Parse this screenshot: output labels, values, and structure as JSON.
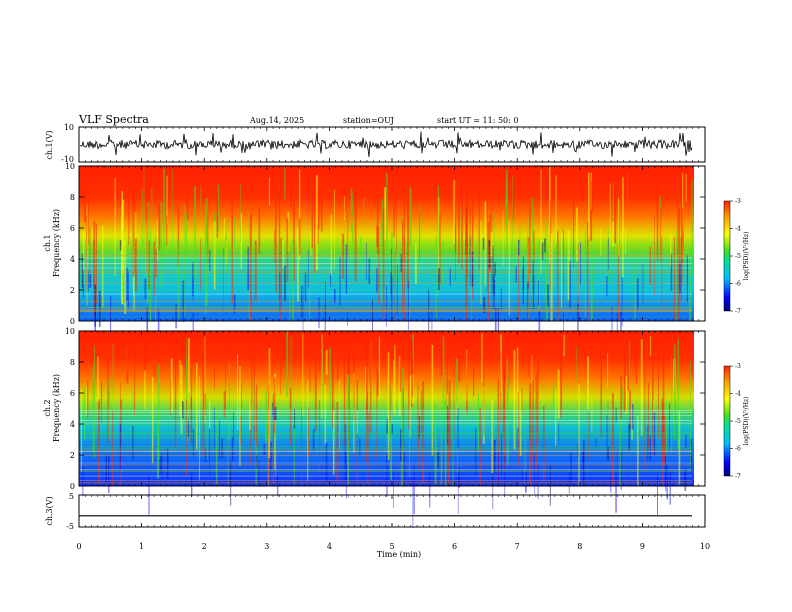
{
  "header": {
    "title": "VLF Spectra",
    "date": "Aug.14, 2025",
    "station": "station=OUJ",
    "start": "start  UT =  11: 50: 0"
  },
  "colors": {
    "colormap": [
      "#000080",
      "#0000ff",
      "#00c0ff",
      "#00e0a0",
      "#40e020",
      "#ffff00",
      "#ffa000",
      "#ff2000"
    ],
    "axis": "#000000",
    "background": "#ffffff"
  },
  "chart_data": [
    {
      "type": "line",
      "panel": "ch1-waveform",
      "ylabel": "ch.1(V)",
      "ylim": [
        -10,
        10
      ],
      "yticks": [
        "10",
        "-10"
      ],
      "xlim": [
        0,
        10
      ],
      "series": [
        {
          "values_summary": "noisy waveform centered near 0 V",
          "mean": 0,
          "amplitude": 2.5
        }
      ]
    },
    {
      "type": "heatmap",
      "panel": "ch1-spectrogram",
      "ylabel": "ch.1\nFrequency  (kHz)",
      "ylim": [
        0,
        10
      ],
      "yticks": [
        "0",
        "2",
        "4",
        "6",
        "8",
        "10"
      ],
      "xlim": [
        0,
        10
      ],
      "colorbar": {
        "label": "log(PSD)(V²/Hz)",
        "range": [
          -7,
          -3
        ],
        "ticks": [
          "-3",
          "-4",
          "-5",
          "-6",
          "-7"
        ]
      },
      "bands": [
        {
          "from_khz": 0,
          "to_khz": 4.5,
          "level": "blue-green"
        },
        {
          "from_khz": 4.5,
          "to_khz": 7,
          "level": "green-yellow"
        },
        {
          "from_khz": 7,
          "to_khz": 10,
          "level": "red"
        }
      ]
    },
    {
      "type": "heatmap",
      "panel": "ch2-spectrogram",
      "ylabel": "ch.2\nFrequency  (kHz)",
      "ylim": [
        0,
        10
      ],
      "yticks": [
        "0",
        "2",
        "4",
        "6",
        "8",
        "10"
      ],
      "xlim": [
        0,
        10
      ],
      "colorbar": {
        "label": "log(PSD)(V²/Hz)",
        "range": [
          -7,
          -3
        ],
        "ticks": [
          "-3",
          "-4",
          "-5",
          "-6",
          "-7"
        ]
      },
      "bands": [
        {
          "from_khz": 0,
          "to_khz": 4.5,
          "level": "blue"
        },
        {
          "from_khz": 4.5,
          "to_khz": 7,
          "level": "green-yellow"
        },
        {
          "from_khz": 7,
          "to_khz": 10,
          "level": "red"
        }
      ]
    },
    {
      "type": "line",
      "panel": "ch3-waveform",
      "ylabel": "ch.3(V)",
      "ylim": [
        -5,
        5
      ],
      "yticks": [
        "5",
        "-5"
      ],
      "xlim": [
        0,
        10
      ],
      "series": [
        {
          "values_summary": "flat line",
          "value": -1.5
        }
      ]
    }
  ],
  "xaxis": {
    "label": "Time  (min)",
    "ticks": [
      "0",
      "1",
      "2",
      "3",
      "4",
      "5",
      "6",
      "7",
      "8",
      "9",
      "10"
    ]
  }
}
